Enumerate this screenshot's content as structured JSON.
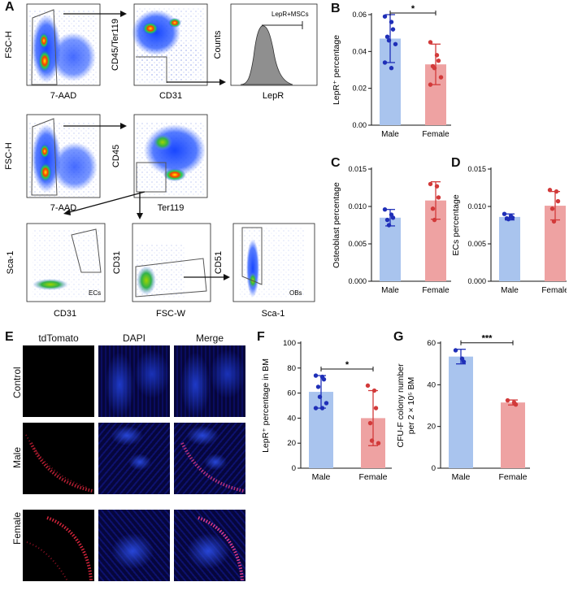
{
  "panels": {
    "A": "A",
    "B": "B",
    "C": "C",
    "D": "D",
    "E": "E",
    "F": "F",
    "G": "G"
  },
  "flow": {
    "row1": {
      "p1": {
        "x": "7-AAD",
        "y": "FSC-H"
      },
      "p2": {
        "x": "CD31",
        "y": "CD45/Ter119"
      },
      "p3": {
        "x": "LepR",
        "y": "Counts",
        "gate": "LepR+MSCs"
      }
    },
    "row2": {
      "p1": {
        "x": "7-AAD",
        "y": "FSC-H"
      },
      "p2": {
        "x": "Ter119",
        "y": "CD45"
      }
    },
    "row3": {
      "p1": {
        "x": "CD31",
        "y": "Sca-1",
        "gate": "ECs"
      },
      "p2": {
        "x": "FSC-W",
        "y": "CD31"
      },
      "p3": {
        "x": "Sca-1",
        "y": "CD51",
        "gate": "OBs"
      }
    }
  },
  "microscopy": {
    "columns": [
      "tdTomato",
      "DAPI",
      "Merge"
    ],
    "rows": [
      "Control",
      "Male",
      "Female"
    ]
  },
  "colors": {
    "male": "#a9c4ee",
    "male_dot": "#1f2fb8",
    "female": "#eea2a2",
    "female_dot": "#d23a3a"
  },
  "chart_data": [
    {
      "panel": "B",
      "type": "bar",
      "categories": [
        "Male",
        "Female"
      ],
      "values": [
        0.047,
        0.033
      ],
      "errors": [
        0.013,
        0.011
      ],
      "points": [
        [
          0.059,
          0.056,
          0.052,
          0.048,
          0.046,
          0.044,
          0.034,
          0.031
        ],
        [
          0.045,
          0.038,
          0.035,
          0.032,
          0.031,
          0.026,
          0.022
        ]
      ],
      "ylabel": "LepR⁺ percentage",
      "ylim": [
        0,
        0.06
      ],
      "yticks": [
        "0.00",
        "0.02",
        "0.04",
        "0.06"
      ],
      "significance": "*"
    },
    {
      "panel": "C",
      "type": "bar",
      "categories": [
        "Male",
        "Female"
      ],
      "values": [
        0.0085,
        0.0108
      ],
      "errors": [
        0.0011,
        0.0025
      ],
      "points": [
        [
          0.0096,
          0.0089,
          0.0085,
          0.0082,
          0.0075
        ],
        [
          0.013,
          0.0127,
          0.0112,
          0.0097,
          0.0082
        ]
      ],
      "ylabel": "Osteoblast percentage",
      "ylim": [
        0,
        0.015
      ],
      "yticks": [
        "0.000",
        "0.005",
        "0.010",
        "0.015"
      ]
    },
    {
      "panel": "D",
      "type": "bar",
      "categories": [
        "Male",
        "Female"
      ],
      "values": [
        0.0086,
        0.0101
      ],
      "errors": [
        0.0004,
        0.0019
      ],
      "points": [
        [
          0.009,
          0.0087,
          0.0085,
          0.0084,
          0.0083
        ],
        [
          0.0122,
          0.012,
          0.0107,
          0.0097,
          0.008
        ]
      ],
      "ylabel": "ECs percentage",
      "ylim": [
        0,
        0.015
      ],
      "yticks": [
        "0.000",
        "0.005",
        "0.010",
        "0.015"
      ]
    },
    {
      "panel": "F",
      "type": "bar",
      "categories": [
        "Male",
        "Female"
      ],
      "values": [
        61,
        40
      ],
      "errors": [
        13,
        22
      ],
      "points": [
        [
          74,
          73,
          71,
          65,
          57,
          52,
          48,
          48
        ],
        [
          66,
          62,
          48,
          36,
          22,
          20
        ]
      ],
      "ylabel": "LepR⁺ percentage in BM",
      "ylim": [
        0,
        100
      ],
      "yticks": [
        "0",
        "20",
        "40",
        "60",
        "80",
        "100"
      ],
      "significance": "*"
    },
    {
      "panel": "G",
      "type": "bar",
      "categories": [
        "Male",
        "Female"
      ],
      "values": [
        53.5,
        31.5
      ],
      "errors": [
        3.5,
        1.2
      ],
      "points": [
        [
          56.5,
          52.5,
          51
        ],
        [
          32.5,
          31.5,
          30.5
        ]
      ],
      "ylabel": "CFU-F colony number per 2 × 10⁵ BM",
      "ylim": [
        0,
        60
      ],
      "yticks": [
        "0",
        "20",
        "40",
        "60"
      ],
      "significance": "***"
    }
  ]
}
